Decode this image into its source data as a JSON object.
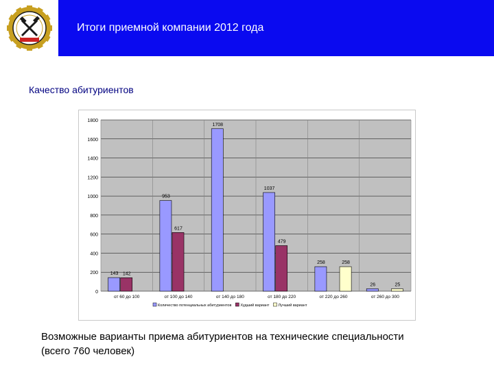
{
  "header": {
    "title": "Итоги приемной компании 2012 года",
    "logo_icon": "university-emblem-icon",
    "band_color": "#0a0af0"
  },
  "section": {
    "title": "Качество абитуриентов"
  },
  "caption": {
    "line1": "Возможные варианты приема абитуриентов на технические специальности",
    "line2": "(всего 760 человек)"
  },
  "chart_data": {
    "type": "bar",
    "categories": [
      "от 60 до 100",
      "от 100 до 140",
      "от 140 до 180",
      "от 180 до 220",
      "от 220 до 260",
      "от 260 до 300"
    ],
    "series": [
      {
        "name": "Количество потенциальных абитуриентов",
        "values": [
          143,
          953,
          1708,
          1037,
          258,
          26
        ],
        "color": "#9999ff"
      },
      {
        "name": "Худший вариант",
        "values": [
          142,
          617,
          0,
          479,
          0,
          0
        ],
        "color": "#993366"
      },
      {
        "name": "Лучший вариант",
        "values": [
          0,
          0,
          0,
          0,
          258,
          25
        ],
        "color": "#ffffcc"
      }
    ],
    "data_labels": [
      [
        "143",
        "953",
        "1708",
        "1037",
        "258",
        "26"
      ],
      [
        "142",
        "617",
        "",
        "479",
        "",
        ""
      ],
      [
        "",
        "",
        "",
        "",
        "258",
        "25"
      ]
    ],
    "y_ticks": [
      "0",
      "200",
      "400",
      "600",
      "800",
      "1000",
      "1200",
      "1400",
      "1600",
      "1800"
    ],
    "ylim": [
      0,
      1800
    ],
    "grid": true,
    "legend_position": "bottom",
    "plot_background": "#c0c0c0"
  }
}
